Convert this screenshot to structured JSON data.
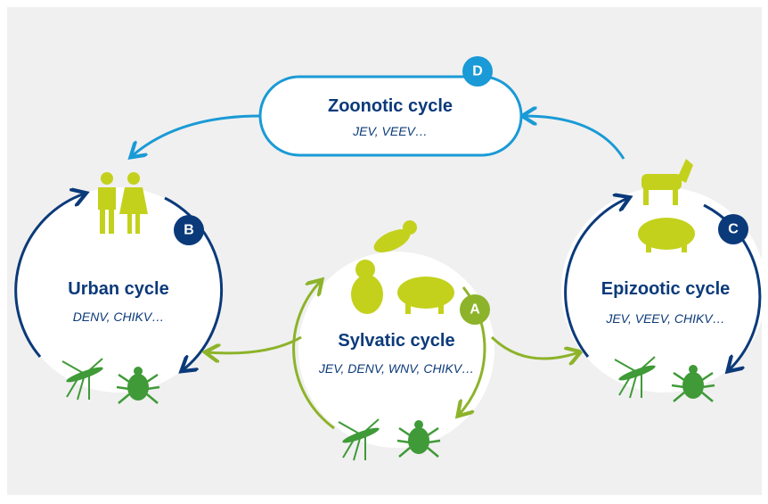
{
  "zoonotic": {
    "badge": "D",
    "title": "Zoonotic cycle",
    "viruses": "JEV, VEEV…"
  },
  "urban": {
    "badge": "B",
    "title": "Urban cycle",
    "viruses": "DENV, CHIKV…"
  },
  "sylvatic": {
    "badge": "A",
    "title": "Sylvatic cycle",
    "viruses": "JEV, DENV, WNV, CHIKV…"
  },
  "epizootic": {
    "badge": "C",
    "title": "Epizootic cycle",
    "viruses": "JEV, VEEV, CHIKV…"
  }
}
